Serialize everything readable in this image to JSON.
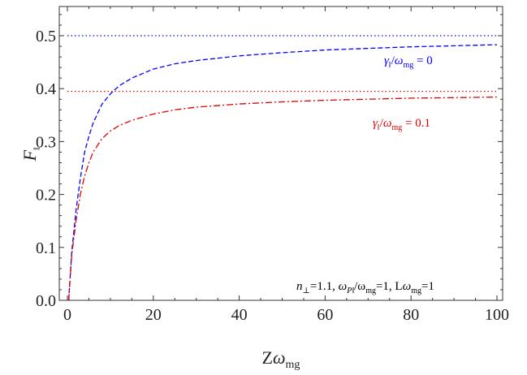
{
  "chart_data": {
    "type": "line",
    "title": "",
    "xlabel": {
      "main": "Z",
      "greek": "ω",
      "sub": "mg"
    },
    "ylabel": {
      "main": "F",
      "sub": "‖"
    },
    "xlim": [
      0,
      100
    ],
    "ylim": [
      0,
      0.55
    ],
    "x_ticks": [
      "0",
      "20",
      "40",
      "60",
      "80",
      "100"
    ],
    "y_ticks": [
      "0.0",
      "0.1",
      "0.2",
      "0.3",
      "0.4",
      "0.5"
    ],
    "grid": false,
    "series": [
      {
        "style": "dashed",
        "color": "#0000ff",
        "x": [
          0.3,
          1,
          2,
          3,
          4,
          5,
          6,
          8,
          10,
          12,
          15,
          20,
          25,
          30,
          40,
          50,
          60,
          70,
          80,
          90,
          100
        ],
        "y": [
          0.0,
          0.09,
          0.17,
          0.23,
          0.28,
          0.31,
          0.335,
          0.37,
          0.39,
          0.405,
          0.42,
          0.437,
          0.447,
          0.453,
          0.462,
          0.468,
          0.473,
          0.476,
          0.479,
          0.481,
          0.483
        ]
      },
      {
        "style": "dotted",
        "color": "#0000ff",
        "x": [
          0,
          100
        ],
        "y": [
          0.5,
          0.5
        ]
      },
      {
        "style": "dashdot",
        "color": "#dd0000",
        "x": [
          0.3,
          1,
          2,
          3,
          4,
          5,
          6,
          8,
          10,
          12,
          15,
          20,
          25,
          30,
          40,
          50,
          60,
          70,
          80,
          90,
          100
        ],
        "y": [
          0.0,
          0.085,
          0.15,
          0.2,
          0.235,
          0.26,
          0.28,
          0.305,
          0.32,
          0.33,
          0.34,
          0.352,
          0.36,
          0.365,
          0.371,
          0.375,
          0.378,
          0.38,
          0.382,
          0.383,
          0.384
        ]
      },
      {
        "style": "dotted",
        "color": "#dd0000",
        "x": [
          0,
          100
        ],
        "y": [
          0.395,
          0.395
        ]
      }
    ],
    "annotations": [
      {
        "id": "blue",
        "color": "#0000ff",
        "greek": "γ",
        "sub1": "‖",
        "slash": "/",
        "greek2": "ω",
        "sub2": "mg",
        "rest": " = 0"
      },
      {
        "id": "red",
        "color": "#dd0000",
        "greek": "γ",
        "sub1": "‖",
        "slash": "/",
        "greek2": "ω",
        "sub2": "mg",
        "rest": " = 0.1"
      },
      {
        "id": "params",
        "color": "#000000",
        "n": "n",
        "n_sub": "⊥",
        "n_val": "=1.1, ",
        "w": "ω",
        "w_sub": "P‖",
        "w_mid": "/ω",
        "w_sub2": "mg",
        "w_val": "=1, L",
        "l_greek": "ω",
        "l_sub": "mg",
        "l_val": "=1"
      }
    ]
  }
}
